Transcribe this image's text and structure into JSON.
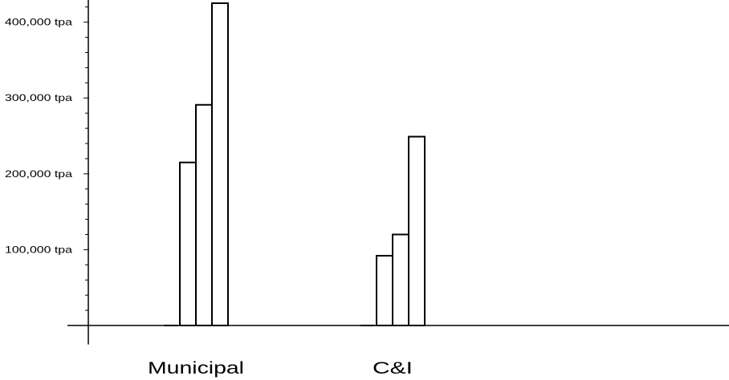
{
  "chart_data": {
    "type": "bar",
    "categories": [
      "Municipal",
      "C&I"
    ],
    "series": [
      {
        "values": [
          0,
          0
        ]
      },
      {
        "values": [
          215000,
          92000
        ]
      },
      {
        "values": [
          291000,
          120000
        ]
      },
      {
        "values": [
          425000,
          249000
        ]
      }
    ],
    "y_ticks": [
      {
        "value": 100000,
        "label": "100,000 tpa"
      },
      {
        "value": 200000,
        "label": "200,000 tpa"
      },
      {
        "value": 300000,
        "label": "300,000 tpa"
      },
      {
        "value": 400000,
        "label": "400,000 tpa"
      }
    ],
    "ylim": [
      -25000,
      425000
    ],
    "title": "",
    "xlabel": "",
    "ylabel": "",
    "grid": false,
    "legend": "none",
    "colors": {
      "bar_fill": "#ffffff",
      "bar_stroke": "#000000",
      "axis": "#000000"
    }
  }
}
